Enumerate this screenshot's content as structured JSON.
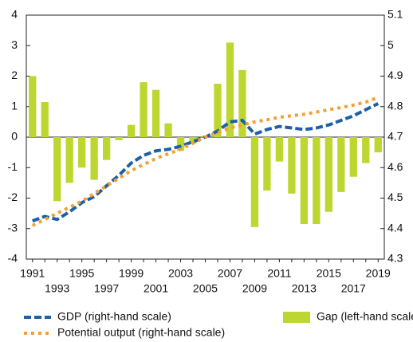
{
  "chart_data": {
    "type": "bar",
    "categories": [
      1991,
      null,
      1993,
      null,
      1995,
      null,
      1997,
      null,
      1999,
      null,
      2001,
      null,
      2003,
      null,
      2005,
      null,
      2007,
      null,
      2009,
      null,
      2011,
      null,
      2013,
      null,
      2015,
      null,
      2017,
      null,
      2019
    ],
    "ylim": [
      -4,
      4
    ],
    "yticks": [
      -4,
      -3,
      -2,
      -1,
      0,
      1,
      2,
      3,
      4
    ],
    "y2lim": [
      4.3,
      5.1
    ],
    "y2ticks": [
      4.3,
      4.4,
      4.5,
      4.6,
      4.7,
      4.8,
      4.9,
      5.0,
      5.1
    ],
    "series": [
      {
        "name": "GDP (right-hand scale)",
        "type": "line",
        "dash": "dashed",
        "color": "#1f5fa8",
        "axis": "y2",
        "values": [
          4.425,
          4.44,
          4.43,
          4.455,
          4.485,
          4.505,
          4.54,
          4.575,
          4.615,
          4.64,
          4.655,
          4.66,
          4.67,
          4.685,
          4.7,
          4.72,
          4.75,
          4.755,
          4.71,
          4.725,
          4.735,
          4.73,
          4.725,
          4.73,
          4.74,
          4.755,
          4.77,
          4.79,
          4.81
        ]
      },
      {
        "name": "Gap (left-hand scale)",
        "type": "bar",
        "color": "#bdd630",
        "values": [
          2.0,
          1.15,
          -2.1,
          -1.5,
          -1.0,
          -1.4,
          -0.75,
          -0.1,
          0.4,
          1.8,
          1.55,
          0.45,
          -0.45,
          -0.2,
          0.05,
          1.75,
          3.1,
          2.2,
          -2.95,
          -1.75,
          -0.8,
          -1.85,
          -2.85,
          -2.85,
          -2.45,
          -1.8,
          -1.3,
          -0.85,
          -0.5
        ]
      },
      {
        "name": "Potential output (right-hand scale)",
        "type": "line",
        "dash": "dotted",
        "color": "#f5a030",
        "axis": "y2",
        "values": [
          4.41,
          4.43,
          4.45,
          4.47,
          4.49,
          4.515,
          4.54,
          4.565,
          4.59,
          4.61,
          4.63,
          4.645,
          4.66,
          4.68,
          4.7,
          4.715,
          4.73,
          4.74,
          4.75,
          4.757,
          4.765,
          4.77,
          4.775,
          4.782,
          4.79,
          4.797,
          4.805,
          4.815,
          4.83
        ]
      }
    ]
  }
}
